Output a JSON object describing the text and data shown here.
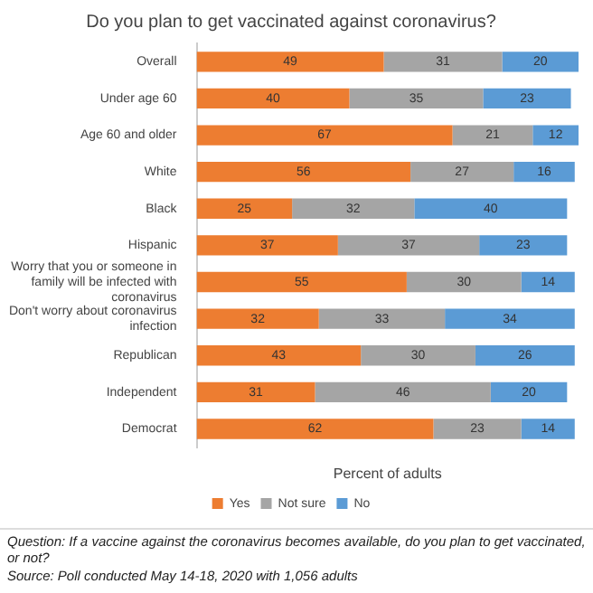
{
  "chart_data": {
    "type": "bar",
    "orientation": "horizontal",
    "stacked": true,
    "title": "Do you plan to get vaccinated against coronavirus?",
    "xlabel": "Percent of adults",
    "categories": [
      "Overall",
      "Under age 60",
      "Age 60 and older",
      "White",
      "Black",
      "Hispanic",
      "Worry that you or someone in family will be infected with coronavirus",
      "Don't worry about coronavirus infection",
      "Republican",
      "Independent",
      "Democrat"
    ],
    "series": [
      {
        "name": "Yes",
        "color": "#ed7d31",
        "values": [
          49,
          40,
          67,
          56,
          25,
          37,
          55,
          32,
          43,
          31,
          62
        ]
      },
      {
        "name": "Not sure",
        "color": "#a5a5a5",
        "values": [
          31,
          35,
          21,
          27,
          32,
          37,
          30,
          33,
          30,
          46,
          23
        ]
      },
      {
        "name": "No",
        "color": "#5b9bd5",
        "values": [
          20,
          23,
          12,
          16,
          40,
          23,
          14,
          34,
          26,
          20,
          14
        ]
      }
    ],
    "data_labels": true,
    "legend": "bottom",
    "grid": false,
    "tick_labels": "y",
    "annotations": [
      "Question: If a vaccine against the coronavirus becomes available, do you plan to get vaccinated, or not?",
      "Source: Poll conducted May 14-18, 2020 with 1,056 adults"
    ]
  }
}
